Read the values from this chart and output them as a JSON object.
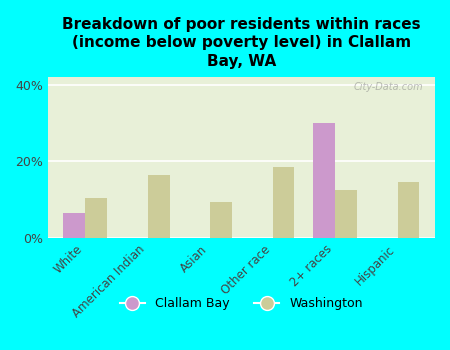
{
  "title": "Breakdown of poor residents within races\n(income below poverty level) in Clallam\nBay, WA",
  "categories": [
    "White",
    "American Indian",
    "Asian",
    "Other race",
    "2+ races",
    "Hispanic"
  ],
  "clallam_bay": [
    6.5,
    0,
    0,
    0,
    30.0,
    0
  ],
  "washington": [
    10.5,
    16.5,
    9.5,
    18.5,
    12.5,
    14.5
  ],
  "clallam_color": "#cc99cc",
  "washington_color": "#cccc99",
  "background_color": "#00ffff",
  "plot_bg": "#e8f0d8",
  "ylim": [
    0,
    42
  ],
  "yticks": [
    0,
    20,
    40
  ],
  "ytick_labels": [
    "0%",
    "20%",
    "40%"
  ],
  "watermark": "City-Data.com",
  "bar_width": 0.35,
  "legend_labels": [
    "Clallam Bay",
    "Washington"
  ]
}
